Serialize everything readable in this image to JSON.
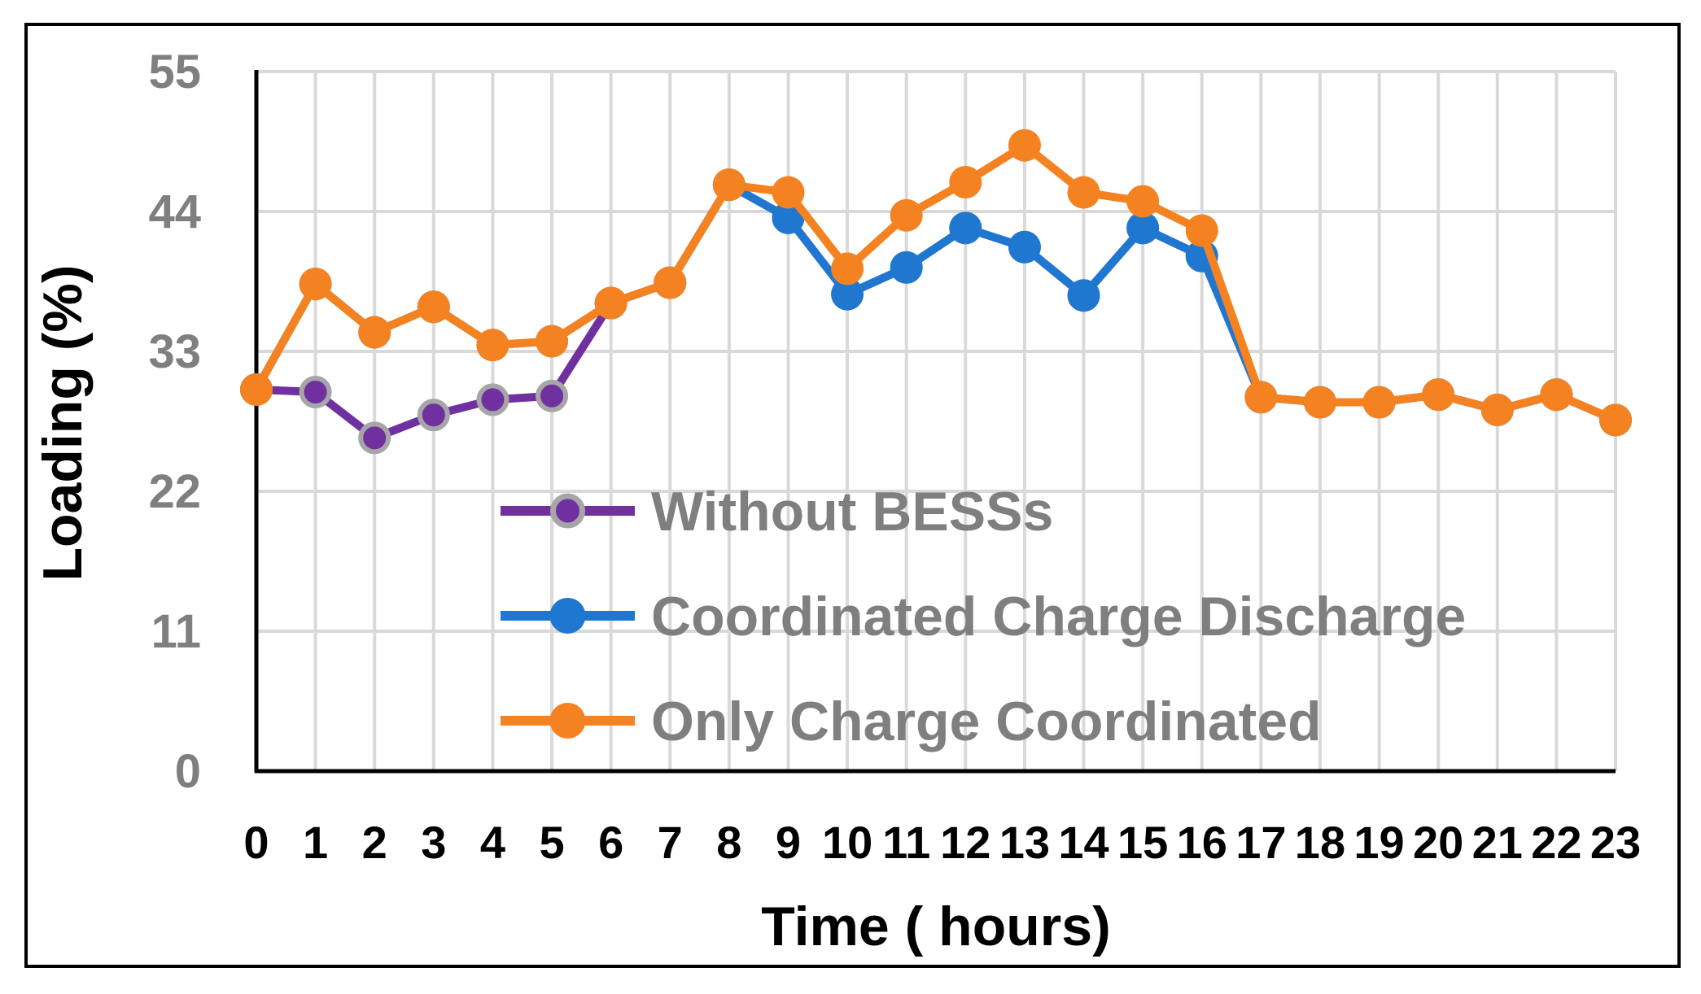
{
  "chart_data": {
    "type": "line",
    "title": "",
    "xlabel": "Time ( hours)",
    "ylabel": "Loading (%)",
    "ylim": [
      0,
      55
    ],
    "yticks": [
      0,
      11,
      22,
      33,
      44,
      55
    ],
    "categories": [
      "0",
      "1",
      "2",
      "3",
      "4",
      "5",
      "6",
      "7",
      "8",
      "9",
      "10",
      "11",
      "12",
      "13",
      "14",
      "15",
      "16",
      "17",
      "18",
      "19",
      "20",
      "21",
      "22",
      "23"
    ],
    "grid": true,
    "legend_position": "center",
    "series": [
      {
        "name": "Without BESSs",
        "color": "#7030a0",
        "marker_border": "#a6a6a6",
        "values": [
          30.0,
          29.8,
          26.2,
          28.0,
          29.2,
          29.5,
          36.8,
          38.4,
          46.1,
          43.5,
          37.5,
          39.6,
          42.7,
          41.2,
          37.4,
          42.7,
          40.5,
          29.4,
          29.0,
          29.0,
          29.6,
          28.4,
          29.6,
          27.6
        ]
      },
      {
        "name": "Coordinated Charge Discharge",
        "color": "#1f77d0",
        "values": [
          30.0,
          38.3,
          34.5,
          36.5,
          33.5,
          33.8,
          36.8,
          38.4,
          46.1,
          43.5,
          37.5,
          39.6,
          42.7,
          41.2,
          37.4,
          42.7,
          40.5,
          29.4,
          29.0,
          29.0,
          29.6,
          28.4,
          29.6,
          27.6
        ]
      },
      {
        "name": "Only Charge Coordinated",
        "color": "#f58220",
        "values": [
          30.0,
          38.3,
          34.5,
          36.5,
          33.5,
          33.8,
          36.8,
          38.4,
          46.1,
          45.5,
          39.5,
          43.7,
          46.3,
          49.2,
          45.5,
          44.8,
          42.5,
          29.4,
          29.0,
          29.0,
          29.6,
          28.4,
          29.6,
          27.6
        ]
      }
    ]
  }
}
